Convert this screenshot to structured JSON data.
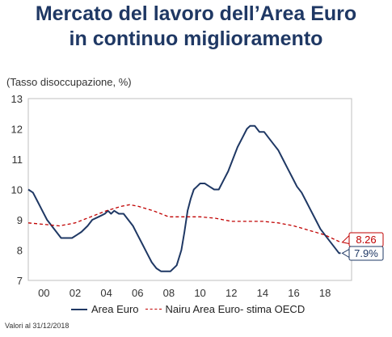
{
  "title_line1": "Mercato del lavoro dell’Area Euro",
  "title_line2": "in continuo miglioramento",
  "footnote": "Valori al 31/12/2018",
  "chart_data": {
    "type": "line",
    "title": "Mercato del lavoro dell’Area Euro in continuo miglioramento",
    "ylabel": "(Tasso disoccupazione, %)",
    "xlabel": "",
    "ylim": [
      7,
      13
    ],
    "yticks": [
      7,
      8,
      9,
      10,
      11,
      12,
      13
    ],
    "xlim": [
      1999,
      2019.7
    ],
    "xticks": [
      {
        "value": 2000,
        "label": "00"
      },
      {
        "value": 2002,
        "label": "02"
      },
      {
        "value": 2004,
        "label": "04"
      },
      {
        "value": 2006,
        "label": "06"
      },
      {
        "value": 2008,
        "label": "08"
      },
      {
        "value": 2010,
        "label": "10"
      },
      {
        "value": 2012,
        "label": "12"
      },
      {
        "value": 2014,
        "label": "14"
      },
      {
        "value": 2016,
        "label": "16"
      },
      {
        "value": 2018,
        "label": "18"
      }
    ],
    "grid": false,
    "legend_position": "bottom",
    "series": [
      {
        "name": "Area Euro",
        "style": "solid",
        "color": "#1f3864",
        "x": [
          1999.0,
          1999.3,
          1999.6,
          1999.9,
          2000.2,
          2000.5,
          2000.8,
          2001.1,
          2001.4,
          2001.8,
          2002.1,
          2002.4,
          2002.8,
          2003.1,
          2003.5,
          2003.9,
          2004.1,
          2004.3,
          2004.5,
          2004.8,
          2005.1,
          2005.4,
          2005.7,
          2006.0,
          2006.3,
          2006.6,
          2006.9,
          2007.2,
          2007.5,
          2007.8,
          2008.1,
          2008.5,
          2008.8,
          2009.0,
          2009.2,
          2009.4,
          2009.6,
          2009.8,
          2010.0,
          2010.3,
          2010.6,
          2010.9,
          2011.2,
          2011.5,
          2011.8,
          2012.1,
          2012.4,
          2012.7,
          2013.0,
          2013.2,
          2013.5,
          2013.8,
          2014.1,
          2014.4,
          2014.7,
          2015.0,
          2015.3,
          2015.6,
          2015.9,
          2016.2,
          2016.5,
          2016.8,
          2017.1,
          2017.4,
          2017.7,
          2018.0,
          2018.3,
          2018.6,
          2018.9,
          2019.0
        ],
        "y": [
          10.0,
          9.9,
          9.6,
          9.3,
          9.0,
          8.8,
          8.6,
          8.4,
          8.4,
          8.4,
          8.5,
          8.6,
          8.8,
          9.0,
          9.1,
          9.2,
          9.3,
          9.2,
          9.3,
          9.2,
          9.2,
          9.0,
          8.8,
          8.5,
          8.2,
          7.9,
          7.6,
          7.4,
          7.3,
          7.3,
          7.3,
          7.5,
          8.0,
          8.6,
          9.3,
          9.7,
          10.0,
          10.1,
          10.2,
          10.2,
          10.1,
          10.0,
          10.0,
          10.3,
          10.6,
          11.0,
          11.4,
          11.7,
          12.0,
          12.1,
          12.1,
          11.9,
          11.9,
          11.7,
          11.5,
          11.3,
          11.0,
          10.7,
          10.4,
          10.1,
          9.9,
          9.6,
          9.3,
          9.0,
          8.7,
          8.5,
          8.3,
          8.1,
          7.9,
          7.9
        ]
      },
      {
        "name": "Nairu Area Euro- stima OECD",
        "style": "dashed",
        "color": "#c00000",
        "x": [
          1999.0,
          2000.0,
          2001.0,
          2002.0,
          2003.0,
          2004.0,
          2005.0,
          2005.5,
          2006.0,
          2007.0,
          2008.0,
          2009.0,
          2010.0,
          2011.0,
          2012.0,
          2013.0,
          2014.0,
          2015.0,
          2016.0,
          2017.0,
          2018.0,
          2019.0
        ],
        "y": [
          8.9,
          8.85,
          8.8,
          8.9,
          9.1,
          9.3,
          9.45,
          9.5,
          9.45,
          9.3,
          9.1,
          9.1,
          9.1,
          9.05,
          8.95,
          8.95,
          8.95,
          8.9,
          8.8,
          8.65,
          8.5,
          8.26
        ]
      }
    ],
    "annotations": [
      {
        "series": "Nairu Area Euro- stima OECD",
        "label": "8.26",
        "value": 8.26
      },
      {
        "series": "Area Euro",
        "label": "7.9%",
        "value": 7.9
      }
    ]
  }
}
